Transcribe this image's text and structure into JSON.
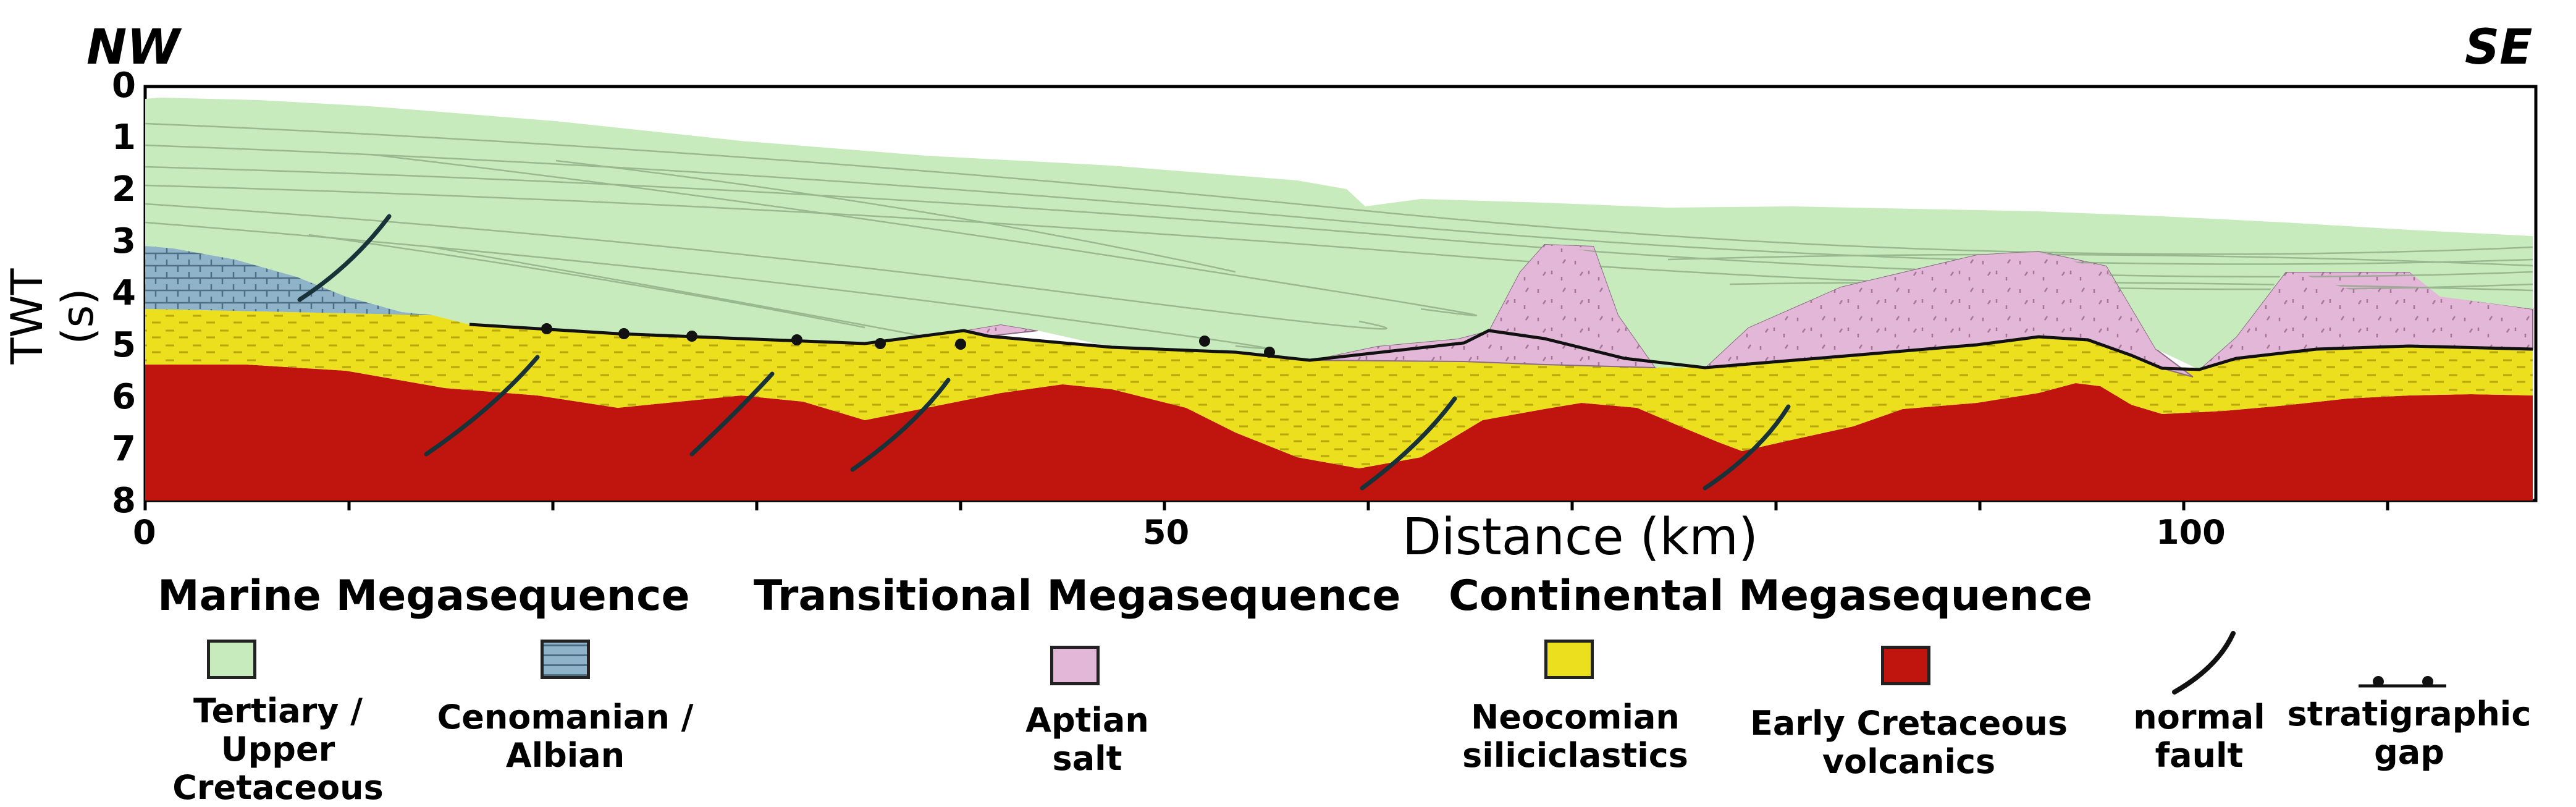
{
  "orientation": {
    "left": "NW",
    "right": "SE"
  },
  "y_axis": {
    "label": "TWT (s)",
    "ticks": [
      "0",
      "1",
      "2",
      "3",
      "4",
      "5",
      "6",
      "7",
      "8"
    ]
  },
  "x_axis": {
    "label": "Distance (km)",
    "ticks": [
      "0",
      "50",
      "100"
    ]
  },
  "colors": {
    "marine": "#c8ebbe",
    "cenomanian": "#8fb3c8",
    "salt": "#e3b7d8",
    "neocomian": "#ecdf1e",
    "volcanics": "#c0140f",
    "fault": "#18323a"
  },
  "legend": {
    "marine_heading": "Marine Megasequence",
    "transitional_heading": "Transitional Megasequence",
    "continental_heading": "Continental Megasequence",
    "items": [
      {
        "line1": "Tertiary /",
        "line2": "Upper Cretaceous"
      },
      {
        "line1": "Cenomanian /",
        "line2": "Albian"
      },
      {
        "line1": "Aptian",
        "line2": "salt"
      },
      {
        "line1": "Neocomian",
        "line2": "siliciclastics"
      },
      {
        "line1": "Early Cretaceous",
        "line2": "volcanics"
      },
      {
        "line1": "normal",
        "line2": "fault"
      },
      {
        "line1": "stratigraphic",
        "line2": "gap"
      }
    ]
  }
}
